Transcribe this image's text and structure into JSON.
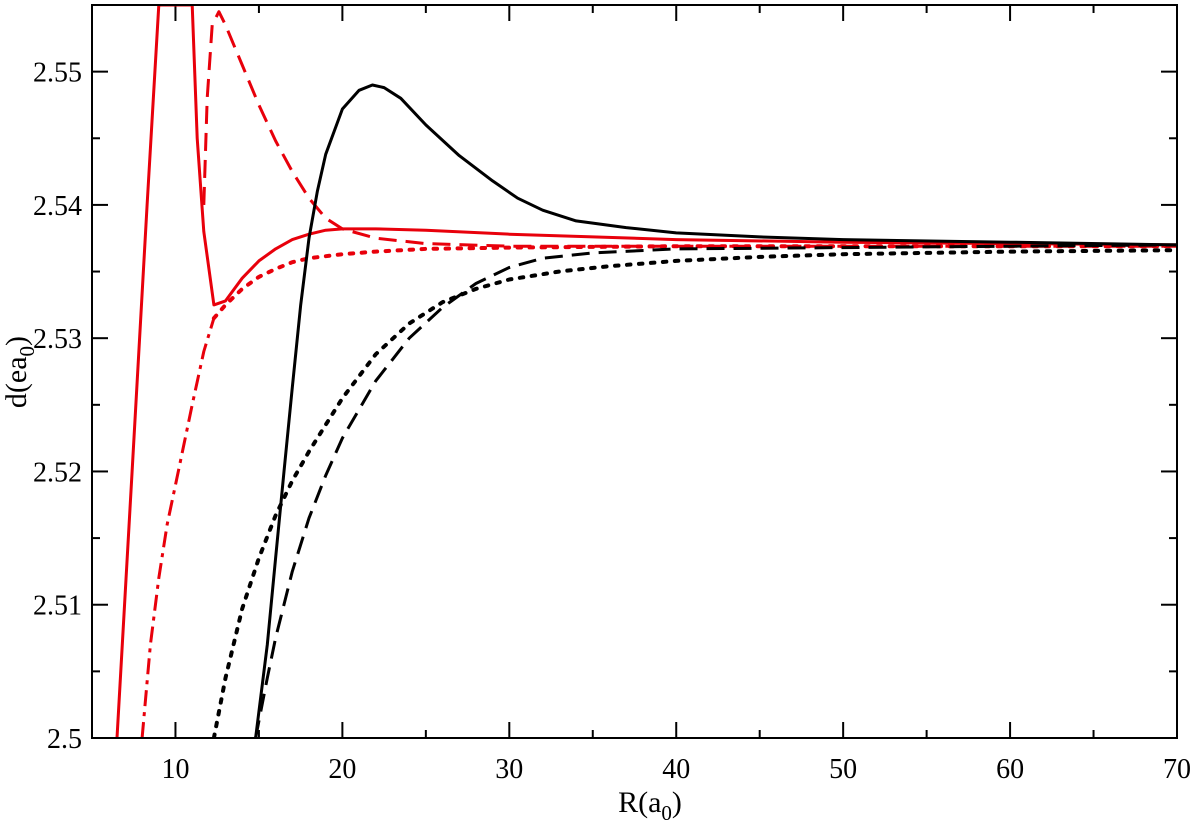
{
  "chart_data": {
    "type": "line",
    "xlabel": {
      "main": "R(a",
      "sub": "0",
      "close": ")"
    },
    "ylabel": {
      "main": "d(ea",
      "sub": "0",
      "close": ")"
    },
    "xlim": [
      5,
      70
    ],
    "ylim": [
      2.5,
      2.555
    ],
    "x_ticks": [
      10,
      20,
      30,
      40,
      50,
      60,
      70
    ],
    "y_ticks": [
      2.5,
      2.51,
      2.52,
      2.53,
      2.54,
      2.55
    ],
    "x_tick_labels": [
      "10",
      "20",
      "30",
      "40",
      "50",
      "60",
      "70"
    ],
    "y_tick_labels": [
      "2.5",
      "2.51",
      "2.52",
      "2.53",
      "2.54",
      "2.55"
    ],
    "grid": false,
    "series": [
      {
        "color": "#e8000b",
        "style": "solid",
        "points": [
          [
            6.5,
            2.5
          ],
          [
            7.4,
            2.52
          ],
          [
            8.3,
            2.54
          ],
          [
            9,
            2.555
          ],
          [
            11,
            2.555
          ],
          [
            11.3,
            2.545
          ],
          [
            11.7,
            2.538
          ],
          [
            12.3,
            2.5325
          ],
          [
            13,
            2.5328
          ],
          [
            14,
            2.5345
          ],
          [
            15,
            2.5358
          ],
          [
            16,
            2.5367
          ],
          [
            17,
            2.5374
          ],
          [
            18,
            2.5378
          ],
          [
            19,
            2.5381
          ],
          [
            20,
            2.5382
          ],
          [
            22,
            2.5382
          ],
          [
            25,
            2.5381
          ],
          [
            30,
            2.5378
          ],
          [
            35,
            2.5376
          ],
          [
            40,
            2.5374
          ],
          [
            50,
            2.5372
          ],
          [
            60,
            2.5371
          ],
          [
            70,
            2.537
          ]
        ]
      },
      {
        "color": "#e8000b",
        "style": "dashed",
        "points": [
          [
            11.7,
            2.54
          ],
          [
            11.9,
            2.548
          ],
          [
            12.2,
            2.5535
          ],
          [
            12.6,
            2.5545
          ],
          [
            13,
            2.5535
          ],
          [
            14,
            2.5505
          ],
          [
            15,
            2.5475
          ],
          [
            16,
            2.5448
          ],
          [
            17,
            2.5425
          ],
          [
            18,
            2.5405
          ],
          [
            19,
            2.539
          ],
          [
            20,
            2.5382
          ],
          [
            22,
            2.5375
          ],
          [
            25,
            2.5371
          ],
          [
            30,
            2.5369
          ],
          [
            40,
            2.5369
          ],
          [
            50,
            2.5369
          ],
          [
            60,
            2.5369
          ],
          [
            70,
            2.5369
          ]
        ]
      },
      {
        "color": "#e8000b",
        "style": "dashdot",
        "points": [
          [
            8,
            2.5
          ],
          [
            8.5,
            2.507
          ],
          [
            9,
            2.512
          ],
          [
            9.5,
            2.516
          ],
          [
            10,
            2.519
          ],
          [
            11,
            2.525
          ],
          [
            11.7,
            2.529
          ],
          [
            12.3,
            2.5315
          ]
        ]
      },
      {
        "color": "#e8000b",
        "style": "dotted",
        "points": [
          [
            12.3,
            2.5315
          ],
          [
            13,
            2.5325
          ],
          [
            14,
            2.5337
          ],
          [
            15,
            2.5346
          ],
          [
            16,
            2.5352
          ],
          [
            17,
            2.5357
          ],
          [
            18,
            2.536
          ],
          [
            20,
            2.5363
          ],
          [
            22,
            2.5365
          ],
          [
            25,
            2.5367
          ],
          [
            30,
            2.5368
          ],
          [
            40,
            2.5369
          ],
          [
            50,
            2.5369
          ],
          [
            60,
            2.5369
          ],
          [
            70,
            2.5369
          ]
        ]
      },
      {
        "color": "#000000",
        "style": "solid",
        "points": [
          [
            14.8,
            2.5
          ],
          [
            15.5,
            2.507
          ],
          [
            16,
            2.5135
          ],
          [
            16.5,
            2.52
          ],
          [
            17,
            2.5263
          ],
          [
            17.5,
            2.5325
          ],
          [
            18,
            2.5375
          ],
          [
            18.5,
            2.541
          ],
          [
            19,
            2.5438
          ],
          [
            20,
            2.5472
          ],
          [
            21,
            2.5486
          ],
          [
            21.8,
            2.549
          ],
          [
            22.5,
            2.5488
          ],
          [
            23.5,
            2.548
          ],
          [
            25,
            2.546
          ],
          [
            27,
            2.5437
          ],
          [
            29,
            2.5418
          ],
          [
            30.5,
            2.5405
          ],
          [
            32,
            2.5396
          ],
          [
            34,
            2.5388
          ],
          [
            37,
            2.5383
          ],
          [
            40,
            2.5379
          ],
          [
            45,
            2.5376
          ],
          [
            50,
            2.5374
          ],
          [
            60,
            2.5372
          ],
          [
            70,
            2.537
          ]
        ]
      },
      {
        "color": "#000000",
        "style": "dashed",
        "points": [
          [
            14.8,
            2.5
          ],
          [
            15.5,
            2.5045
          ],
          [
            16,
            2.5075
          ],
          [
            17,
            2.5125
          ],
          [
            18,
            2.5165
          ],
          [
            19,
            2.5197
          ],
          [
            20,
            2.5225
          ],
          [
            22,
            2.5268
          ],
          [
            24,
            2.53
          ],
          [
            26,
            2.5323
          ],
          [
            28,
            2.5341
          ],
          [
            30,
            2.5353
          ],
          [
            32,
            2.536
          ],
          [
            35,
            2.5364
          ],
          [
            40,
            2.5367
          ],
          [
            50,
            2.5368
          ],
          [
            60,
            2.5369
          ],
          [
            70,
            2.537
          ]
        ]
      },
      {
        "color": "#000000",
        "style": "dotted",
        "points": [
          [
            12.3,
            2.5
          ],
          [
            13,
            2.5045
          ],
          [
            14,
            2.5097
          ],
          [
            15,
            2.5135
          ],
          [
            16,
            2.5167
          ],
          [
            17,
            2.5193
          ],
          [
            18,
            2.5215
          ],
          [
            19,
            2.5235
          ],
          [
            20,
            2.5255
          ],
          [
            22,
            2.5288
          ],
          [
            24,
            2.5311
          ],
          [
            26,
            2.5327
          ],
          [
            28,
            2.5337
          ],
          [
            30,
            2.5344
          ],
          [
            33,
            2.535
          ],
          [
            36,
            2.5354
          ],
          [
            40,
            2.5358
          ],
          [
            45,
            2.5361
          ],
          [
            50,
            2.5363
          ],
          [
            60,
            2.5365
          ],
          [
            70,
            2.5366
          ]
        ]
      }
    ]
  }
}
